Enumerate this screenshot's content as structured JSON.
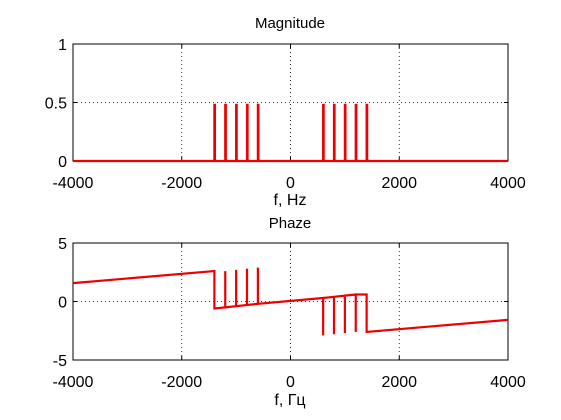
{
  "chart_data": [
    {
      "type": "line",
      "title": "Magnitude",
      "xlabel": "f, Hz",
      "ylabel": "",
      "xlim": [
        -4000,
        4000
      ],
      "ylim": [
        0,
        1
      ],
      "xticks": [
        -4000,
        -2000,
        0,
        2000,
        4000
      ],
      "xtick_labels": [
        "-4000",
        "-2000",
        "0",
        "2000",
        "4000"
      ],
      "yticks": [
        0,
        0.5,
        1
      ],
      "ytick_labels": [
        "0",
        "0.5",
        "1"
      ],
      "grid": true,
      "color": "#ee0000",
      "series": [
        {
          "points": [
            [
              -4000,
              0
            ],
            [
              -1400,
              0
            ],
            [
              -1400,
              0.48
            ],
            [
              -1390,
              0.48
            ],
            [
              -1390,
              0
            ],
            [
              -1200,
              0
            ],
            [
              -1200,
              0.48
            ],
            [
              -1190,
              0.48
            ],
            [
              -1190,
              0
            ],
            [
              -1000,
              0
            ],
            [
              -1000,
              0.48
            ],
            [
              -990,
              0.48
            ],
            [
              -990,
              0
            ],
            [
              -800,
              0
            ],
            [
              -800,
              0.48
            ],
            [
              -790,
              0.48
            ],
            [
              -790,
              0
            ],
            [
              -600,
              0
            ],
            [
              -600,
              0.48
            ],
            [
              -590,
              0.48
            ],
            [
              -590,
              0
            ],
            [
              600,
              0
            ],
            [
              600,
              0.48
            ],
            [
              610,
              0.48
            ],
            [
              610,
              0
            ],
            [
              800,
              0
            ],
            [
              800,
              0.48
            ],
            [
              810,
              0.48
            ],
            [
              810,
              0
            ],
            [
              1000,
              0
            ],
            [
              1000,
              0.48
            ],
            [
              1010,
              0.48
            ],
            [
              1010,
              0
            ],
            [
              1200,
              0
            ],
            [
              1200,
              0.48
            ],
            [
              1210,
              0.48
            ],
            [
              1210,
              0
            ],
            [
              1400,
              0
            ],
            [
              1400,
              0.48
            ],
            [
              1410,
              0.48
            ],
            [
              1410,
              0
            ],
            [
              4000,
              0
            ]
          ]
        }
      ]
    },
    {
      "type": "line",
      "title": "Phaze",
      "xlabel": "f, Гц",
      "ylabel": "",
      "xlim": [
        -4000,
        4000
      ],
      "ylim": [
        -5,
        5
      ],
      "xticks": [
        -4000,
        -2000,
        0,
        2000,
        4000
      ],
      "xtick_labels": [
        "-4000",
        "-2000",
        "0",
        "2000",
        "4000"
      ],
      "yticks": [
        -5,
        0,
        5
      ],
      "ytick_labels": [
        "-5",
        "0",
        "5"
      ],
      "grid": true,
      "color": "#ee0000",
      "series": [
        {
          "points": [
            [
              -4000,
              1.57
            ],
            [
              -1400,
              2.6
            ],
            [
              -1400,
              -0.6
            ],
            [
              -1200,
              -0.5
            ],
            [
              -1200,
              2.6
            ],
            [
              -1200,
              -0.5
            ],
            [
              -1000,
              -0.4
            ],
            [
              -1000,
              2.7
            ],
            [
              -1000,
              -0.4
            ],
            [
              -800,
              -0.3
            ],
            [
              -800,
              2.8
            ],
            [
              -800,
              -0.3
            ],
            [
              -600,
              -0.2
            ],
            [
              -600,
              2.9
            ],
            [
              -600,
              -0.2
            ],
            [
              600,
              0.3
            ],
            [
              600,
              -2.9
            ],
            [
              600,
              0.3
            ],
            [
              800,
              0.4
            ],
            [
              800,
              -2.8
            ],
            [
              800,
              0.4
            ],
            [
              1000,
              0.5
            ],
            [
              1000,
              -2.7
            ],
            [
              1000,
              0.5
            ],
            [
              1200,
              0.6
            ],
            [
              1200,
              -2.6
            ],
            [
              1200,
              0.6
            ],
            [
              1400,
              0.6
            ],
            [
              1400,
              -2.6
            ],
            [
              4000,
              -1.57
            ]
          ]
        }
      ]
    }
  ]
}
